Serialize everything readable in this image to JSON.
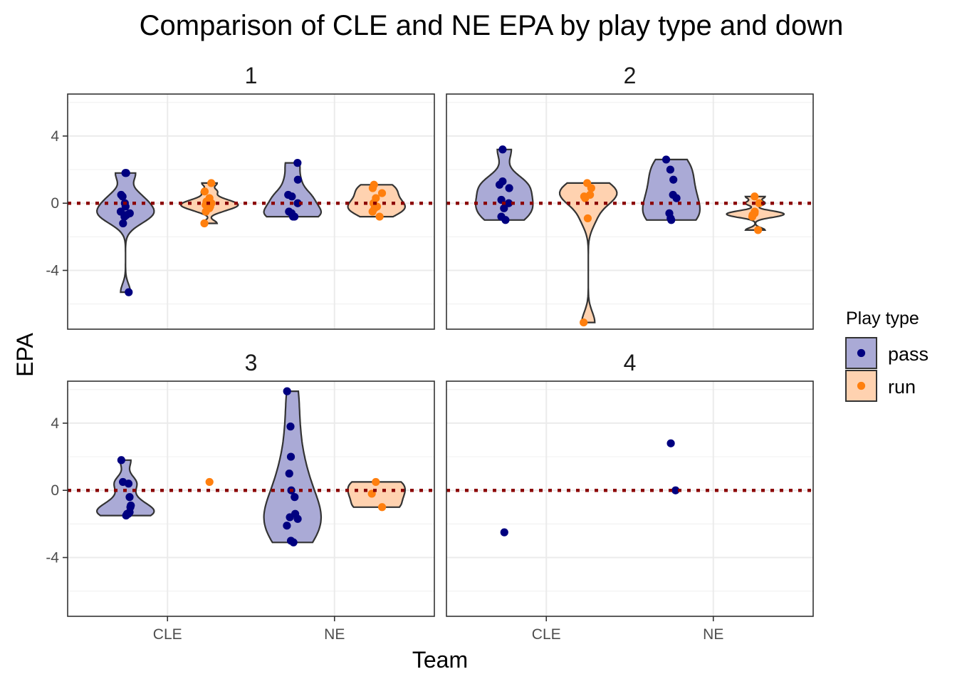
{
  "chart_data": {
    "type": "violin",
    "title": "Comparison of CLE and NE EPA by play type and down",
    "xlabel": "Team",
    "ylabel": "EPA",
    "categories": [
      "CLE",
      "NE"
    ],
    "y_ticks": [
      -4,
      0,
      4
    ],
    "ylim": [
      -7.5,
      6.5
    ],
    "reference_line": {
      "y": 0,
      "style": "dotted",
      "color": "#8b0000"
    },
    "legend": {
      "title": "Play type",
      "position": "right",
      "entries": [
        {
          "name": "pass",
          "point_color": "#000080",
          "fill_color": "#aaaad6"
        },
        {
          "name": "run",
          "point_color": "#ff7f0e",
          "fill_color": "#ffd2b0"
        }
      ]
    },
    "facets": [
      {
        "label": "1",
        "groups": [
          {
            "team": "CLE",
            "type": "pass",
            "values": [
              1.8,
              1.8,
              0.5,
              0.4,
              0.0,
              -0.2,
              -0.5,
              -0.6,
              -0.7,
              -0.8,
              -1.2,
              -5.3
            ]
          },
          {
            "team": "CLE",
            "type": "run",
            "values": [
              1.2,
              0.7,
              0.3,
              0.1,
              0.0,
              -0.1,
              -0.2,
              -0.3,
              -0.5,
              -1.2
            ]
          },
          {
            "team": "NE",
            "type": "pass",
            "values": [
              2.4,
              1.4,
              0.5,
              0.4,
              0.0,
              -0.5,
              -0.6,
              -0.8,
              -0.8
            ]
          },
          {
            "team": "NE",
            "type": "run",
            "values": [
              1.1,
              0.9,
              0.6,
              0.3,
              0.0,
              -0.2,
              -0.3,
              -0.5,
              -0.8
            ]
          }
        ]
      },
      {
        "label": "2",
        "groups": [
          {
            "team": "CLE",
            "type": "pass",
            "values": [
              3.2,
              1.3,
              1.1,
              0.9,
              0.2,
              0.0,
              -0.3,
              -0.8,
              -1.0
            ]
          },
          {
            "team": "CLE",
            "type": "run",
            "values": [
              1.2,
              0.9,
              0.5,
              0.4,
              0.3,
              -0.9,
              -7.1
            ]
          },
          {
            "team": "NE",
            "type": "pass",
            "values": [
              2.6,
              2.0,
              1.4,
              0.5,
              0.3,
              -0.6,
              -0.9,
              -1.0
            ]
          },
          {
            "team": "NE",
            "type": "run",
            "values": [
              0.4,
              0.0,
              -0.5,
              -0.6,
              -0.7,
              -0.8,
              -1.6
            ]
          }
        ]
      },
      {
        "label": "3",
        "groups": [
          {
            "team": "CLE",
            "type": "pass",
            "values": [
              1.8,
              0.5,
              0.4,
              -0.4,
              -0.9,
              -1.0,
              -1.3,
              -1.4,
              -1.4,
              -1.5
            ]
          },
          {
            "team": "CLE",
            "type": "run",
            "values": [
              0.5
            ]
          },
          {
            "team": "NE",
            "type": "pass",
            "values": [
              5.9,
              3.8,
              2.0,
              1.0,
              0.0,
              -0.4,
              -1.4,
              -1.6,
              -1.7,
              -2.1,
              -3.0,
              -3.1
            ]
          },
          {
            "team": "NE",
            "type": "run",
            "values": [
              0.5,
              -0.2,
              -1.0
            ]
          }
        ]
      },
      {
        "label": "4",
        "groups": [
          {
            "team": "CLE",
            "type": "pass",
            "values": [
              -2.5
            ]
          },
          {
            "team": "NE",
            "type": "pass",
            "values": [
              2.8,
              0.0
            ]
          }
        ]
      }
    ]
  }
}
